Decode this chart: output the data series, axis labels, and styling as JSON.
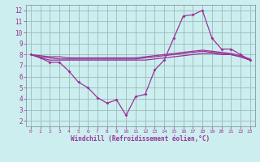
{
  "xlabel": "Windchill (Refroidissement éolien,°C)",
  "background_color": "#cceeee",
  "grid_color": "#99bbbb",
  "line_color": "#993399",
  "xlim": [
    -0.5,
    23.5
  ],
  "ylim": [
    1.5,
    12.5
  ],
  "yticks": [
    2,
    3,
    4,
    5,
    6,
    7,
    8,
    9,
    10,
    11,
    12
  ],
  "xticks": [
    0,
    1,
    2,
    3,
    4,
    5,
    6,
    7,
    8,
    9,
    10,
    11,
    12,
    13,
    14,
    15,
    16,
    17,
    18,
    19,
    20,
    21,
    22,
    23
  ],
  "hours": [
    0,
    1,
    2,
    3,
    4,
    5,
    6,
    7,
    8,
    9,
    10,
    11,
    12,
    13,
    14,
    15,
    16,
    17,
    18,
    19,
    20,
    21,
    22,
    23
  ],
  "temp": [
    8.0,
    7.7,
    7.3,
    7.3,
    6.5,
    5.5,
    5.0,
    4.1,
    3.6,
    3.9,
    2.5,
    4.2,
    4.4,
    6.6,
    7.5,
    9.5,
    11.5,
    11.6,
    12.0,
    9.5,
    8.5,
    8.5,
    8.0,
    7.5
  ],
  "line1": [
    8.0,
    7.7,
    7.5,
    7.5,
    7.5,
    7.5,
    7.5,
    7.5,
    7.5,
    7.5,
    7.5,
    7.5,
    7.5,
    7.6,
    7.7,
    7.8,
    7.9,
    8.0,
    8.1,
    8.1,
    8.0,
    8.0,
    7.8,
    7.5
  ],
  "line2": [
    8.0,
    7.8,
    7.7,
    7.6,
    7.6,
    7.6,
    7.6,
    7.6,
    7.6,
    7.6,
    7.6,
    7.6,
    7.7,
    7.8,
    7.9,
    8.0,
    8.1,
    8.2,
    8.3,
    8.2,
    8.1,
    8.0,
    7.8,
    7.5
  ],
  "line3": [
    8.0,
    7.9,
    7.8,
    7.8,
    7.7,
    7.7,
    7.7,
    7.7,
    7.7,
    7.7,
    7.7,
    7.7,
    7.8,
    7.9,
    8.0,
    8.1,
    8.2,
    8.3,
    8.4,
    8.3,
    8.2,
    8.1,
    7.9,
    7.6
  ]
}
